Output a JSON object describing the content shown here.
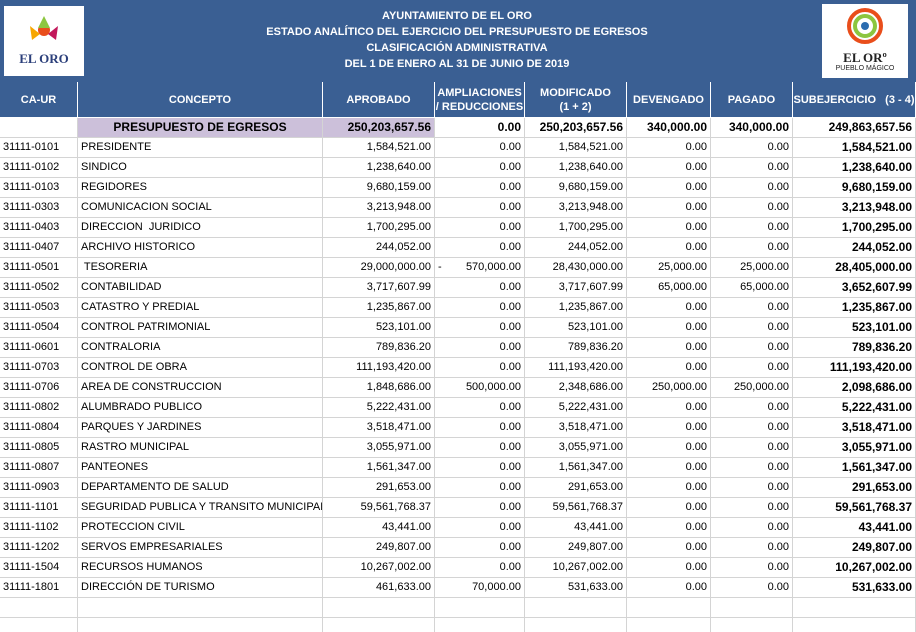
{
  "header": {
    "left_logo": "EL ORO",
    "right_logo": "EL ORº",
    "right_logo_sub": "PUEBLO MÁGICO",
    "titles": [
      "AYUNTAMIENTO DE EL ORO",
      "ESTADO ANALÍTICO DEL EJERCICIO DEL PRESUPUESTO DE EGRESOS",
      "CLASIFICACIÓN ADMINISTRATIVA",
      "DEL 1 DE ENERO AL 31 DE JUNIO DE 2019"
    ]
  },
  "table": {
    "columns": [
      [
        "CA-UR"
      ],
      [
        "CONCEPTO"
      ],
      [
        "APROBADO"
      ],
      [
        "AMPLIACIONES",
        "/ REDUCCIONES"
      ],
      [
        "MODIFICADO",
        "(1 + 2)"
      ],
      [
        "DEVENGADO"
      ],
      [
        "PAGADO"
      ],
      [
        "SUBEJERCICIO   (3 - 4)"
      ]
    ],
    "total": [
      "PRESUPUESTO DE EGRESOS",
      "250,203,657.56",
      "0.00",
      "250,203,657.56",
      "340,000.00",
      "340,000.00",
      "249,863,657.56"
    ],
    "rows": [
      [
        "31111-0101",
        "PRESIDENTE",
        "1,584,521.00",
        "0.00",
        "1,584,521.00",
        "0.00",
        "0.00",
        "1,584,521.00"
      ],
      [
        "31111-0102",
        "SINDICO",
        "1,238,640.00",
        "0.00",
        "1,238,640.00",
        "0.00",
        "0.00",
        "1,238,640.00"
      ],
      [
        "31111-0103",
        "REGIDORES",
        "9,680,159.00",
        "0.00",
        "9,680,159.00",
        "0.00",
        "0.00",
        "9,680,159.00"
      ],
      [
        "31111-0303",
        "COMUNICACION SOCIAL",
        "3,213,948.00",
        "0.00",
        "3,213,948.00",
        "0.00",
        "0.00",
        "3,213,948.00"
      ],
      [
        "31111-0403",
        "DIRECCION  JURIDICO",
        "1,700,295.00",
        "0.00",
        "1,700,295.00",
        "0.00",
        "0.00",
        "1,700,295.00"
      ],
      [
        "31111-0407",
        "ARCHIVO HISTORICO",
        "244,052.00",
        "0.00",
        "244,052.00",
        "0.00",
        "0.00",
        "244,052.00"
      ],
      [
        "31111-0501",
        " TESORERIA",
        "29,000,000.00",
        [
          "-",
          "570,000.00"
        ],
        "28,430,000.00",
        "25,000.00",
        "25,000.00",
        "28,405,000.00"
      ],
      [
        "31111-0502",
        "CONTABILIDAD",
        "3,717,607.99",
        "0.00",
        "3,717,607.99",
        "65,000.00",
        "65,000.00",
        "3,652,607.99"
      ],
      [
        "31111-0503",
        "CATASTRO Y PREDIAL",
        "1,235,867.00",
        "0.00",
        "1,235,867.00",
        "0.00",
        "0.00",
        "1,235,867.00"
      ],
      [
        "31111-0504",
        "CONTROL PATRIMONIAL",
        "523,101.00",
        "0.00",
        "523,101.00",
        "0.00",
        "0.00",
        "523,101.00"
      ],
      [
        "31111-0601",
        "CONTRALORIA",
        "789,836.20",
        "0.00",
        "789,836.20",
        "0.00",
        "0.00",
        "789,836.20"
      ],
      [
        "31111-0703",
        "CONTROL DE OBRA",
        "111,193,420.00",
        "0.00",
        "111,193,420.00",
        "0.00",
        "0.00",
        "111,193,420.00"
      ],
      [
        "31111-0706",
        "AREA DE CONSTRUCCION",
        "1,848,686.00",
        "500,000.00",
        "2,348,686.00",
        "250,000.00",
        "250,000.00",
        "2,098,686.00"
      ],
      [
        "31111-0802",
        "ALUMBRADO PUBLICO",
        "5,222,431.00",
        "0.00",
        "5,222,431.00",
        "0.00",
        "0.00",
        "5,222,431.00"
      ],
      [
        "31111-0804",
        "PARQUES Y JARDINES",
        "3,518,471.00",
        "0.00",
        "3,518,471.00",
        "0.00",
        "0.00",
        "3,518,471.00"
      ],
      [
        "31111-0805",
        "RASTRO MUNICIPAL",
        "3,055,971.00",
        "0.00",
        "3,055,971.00",
        "0.00",
        "0.00",
        "3,055,971.00"
      ],
      [
        "31111-0807",
        "PANTEONES",
        "1,561,347.00",
        "0.00",
        "1,561,347.00",
        "0.00",
        "0.00",
        "1,561,347.00"
      ],
      [
        "31111-0903",
        "DEPARTAMENTO DE SALUD",
        "291,653.00",
        "0.00",
        "291,653.00",
        "0.00",
        "0.00",
        "291,653.00"
      ],
      [
        "31111-1101",
        "SEGURIDAD PUBLICA Y TRANSITO MUNICIPAL",
        "59,561,768.37",
        "0.00",
        "59,561,768.37",
        "0.00",
        "0.00",
        "59,561,768.37"
      ],
      [
        "31111-1102",
        "PROTECCION CIVIL",
        "43,441.00",
        "0.00",
        "43,441.00",
        "0.00",
        "0.00",
        "43,441.00"
      ],
      [
        "31111-1202",
        "SERVOS EMPRESARIALES",
        "249,807.00",
        "0.00",
        "249,807.00",
        "0.00",
        "0.00",
        "249,807.00"
      ],
      [
        "31111-1504",
        "RECURSOS HUMANOS",
        "10,267,002.00",
        "0.00",
        "10,267,002.00",
        "0.00",
        "0.00",
        "10,267,002.00"
      ],
      [
        "31111-1801",
        "DIRECCIÓN DE TURISMO",
        "461,633.00",
        "70,000.00",
        "531,633.00",
        "0.00",
        "0.00",
        "531,633.00"
      ]
    ]
  }
}
